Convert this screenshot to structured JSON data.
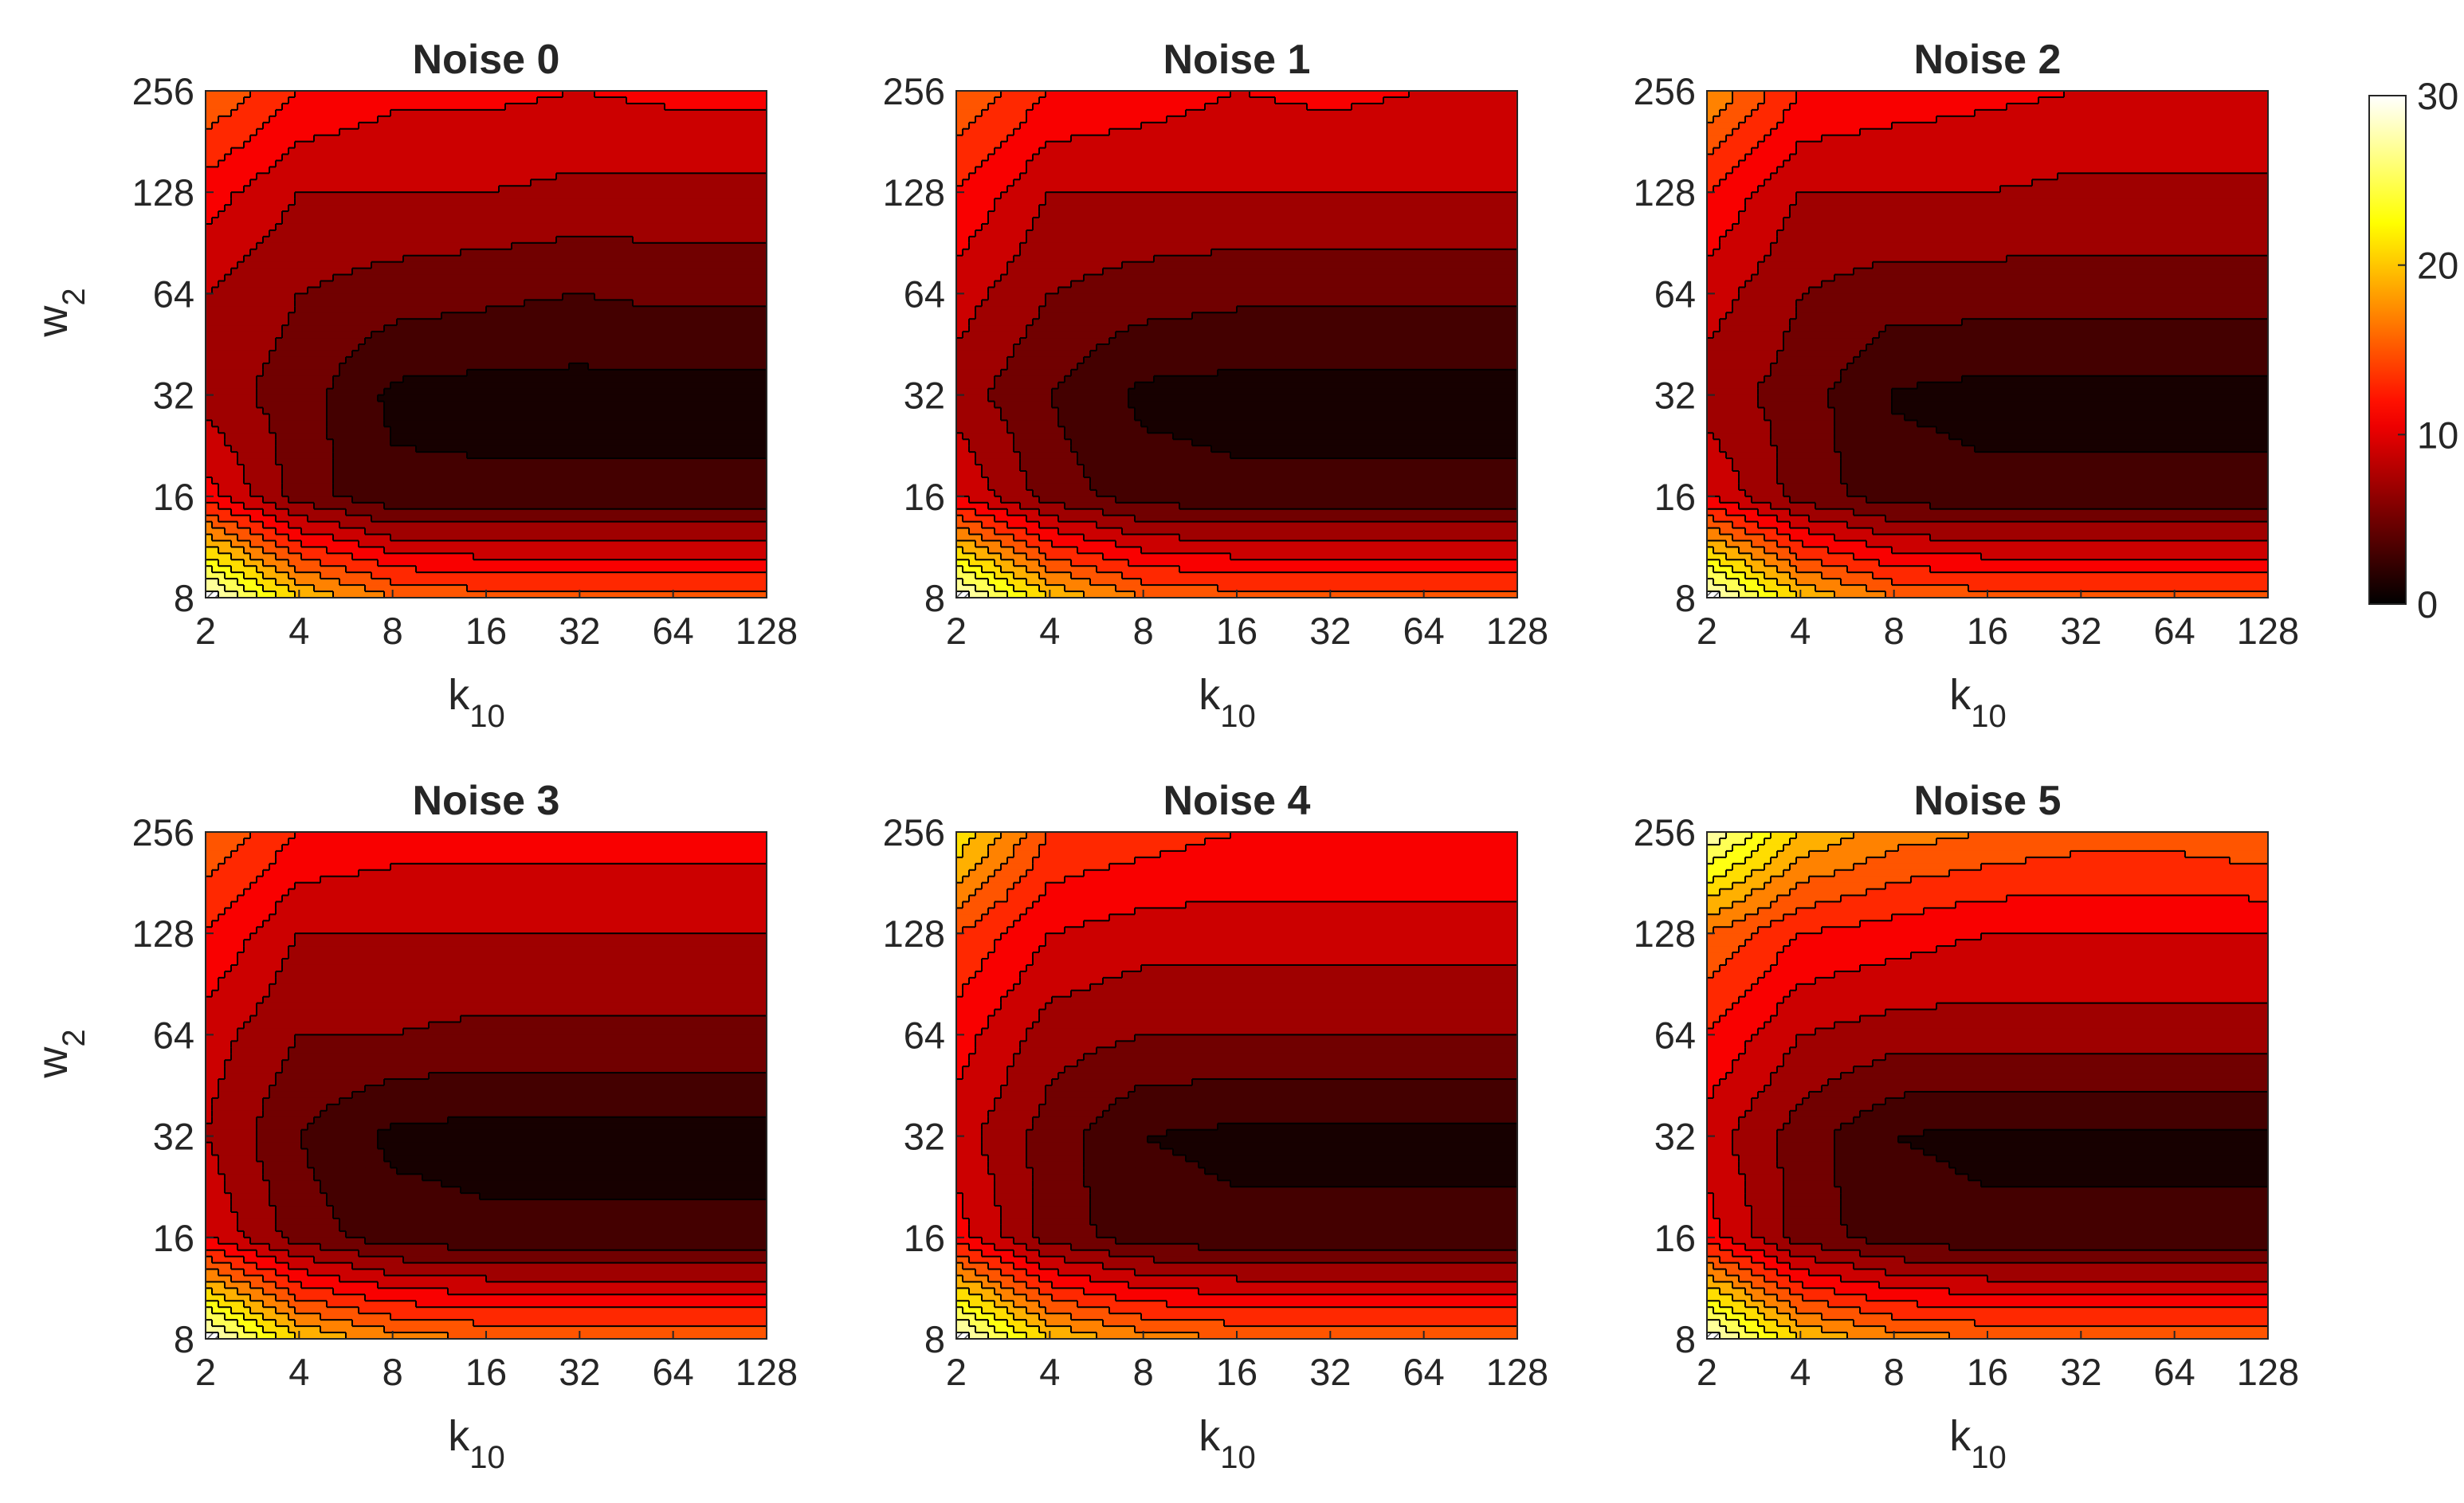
{
  "chart_data": {
    "type": "heatmap",
    "subtype": "filled-contour",
    "colormap": "hot",
    "xscale": "log2",
    "yscale": "log2",
    "x_ticks": [
      "2",
      "4",
      "8",
      "16",
      "32",
      "64",
      "128"
    ],
    "y_ticks": [
      "8",
      "16",
      "32",
      "64",
      "128",
      "256"
    ],
    "x": [
      2,
      4,
      8,
      16,
      32,
      64,
      128
    ],
    "y": [
      8,
      16,
      32,
      64,
      128,
      256
    ],
    "xlabel": {
      "main": "k",
      "sub": "10"
    },
    "ylabel": {
      "main": "w",
      "sub": "2"
    },
    "colorbar": {
      "min": 0,
      "max": 30,
      "ticks": [
        "0",
        "10",
        "20",
        "30"
      ]
    },
    "contour_levels": [
      0,
      2,
      4,
      6,
      8,
      10,
      12,
      14,
      16,
      18,
      20,
      22,
      24,
      26,
      28,
      30
    ],
    "panels": [
      {
        "title": "Noise 0",
        "z": [
          [
            30,
            20,
            16,
            15,
            15,
            15,
            15
          ],
          [
            11,
            5,
            2.5,
            2.5,
            2.5,
            2.5,
            2.5
          ],
          [
            7,
            5,
            1.5,
            1.2,
            1.2,
            1.2,
            1.2
          ],
          [
            8,
            6,
            5,
            4.5,
            4,
            4.5,
            4.5
          ],
          [
            11,
            8,
            8,
            8,
            7.5,
            7.5,
            7.5
          ],
          [
            16,
            12,
            10.5,
            10.5,
            10,
            10.5,
            10.5
          ]
        ]
      },
      {
        "title": "Noise 1",
        "z": [
          [
            30,
            20,
            16,
            15,
            15,
            15,
            15
          ],
          [
            10,
            5,
            3,
            2.5,
            2.5,
            2.5,
            2.5
          ],
          [
            7,
            4,
            1.5,
            1.2,
            1.2,
            1.2,
            1.2
          ],
          [
            9,
            6,
            5,
            4.5,
            4.5,
            4.5,
            4.5
          ],
          [
            12,
            8,
            8,
            8,
            8,
            8,
            8
          ],
          [
            16,
            12,
            11,
            10,
            10.5,
            10,
            10
          ]
        ]
      },
      {
        "title": "Noise 2",
        "z": [
          [
            30,
            20,
            16,
            15,
            15,
            15,
            15
          ],
          [
            10,
            5,
            3,
            2.5,
            2.5,
            2.5,
            2.5
          ],
          [
            7,
            5,
            1.8,
            1.3,
            1.3,
            1.3,
            1.3
          ],
          [
            9,
            6,
            5,
            5,
            5,
            5,
            5
          ],
          [
            12,
            8,
            8,
            8,
            7.5,
            7.5,
            7.5
          ],
          [
            18,
            12,
            11,
            10.5,
            10,
            10,
            10
          ]
        ]
      },
      {
        "title": "Noise 3",
        "z": [
          [
            30,
            20,
            17,
            16,
            16,
            16,
            16
          ],
          [
            10,
            5,
            3,
            2.5,
            2.5,
            2.5,
            2.5
          ],
          [
            8,
            4,
            1.5,
            1.2,
            1.2,
            1.2,
            1.2
          ],
          [
            9,
            6,
            6,
            5.5,
            5.5,
            5.5,
            5.5
          ],
          [
            12,
            8,
            8,
            8,
            8,
            8,
            8
          ],
          [
            16,
            12,
            11,
            11,
            11,
            11,
            11
          ]
        ]
      },
      {
        "title": "Noise 4",
        "z": [
          [
            30,
            20,
            17,
            16,
            16,
            16,
            16
          ],
          [
            11,
            5,
            3,
            2.5,
            2.5,
            2.5,
            2.5
          ],
          [
            9,
            5,
            2,
            1.5,
            1.5,
            1.5,
            1.5
          ],
          [
            11,
            7,
            6,
            6,
            6,
            6,
            6
          ],
          [
            14,
            10,
            9,
            9,
            9,
            9,
            9
          ],
          [
            22,
            14,
            13,
            12,
            12,
            12,
            12
          ]
        ]
      },
      {
        "title": "Noise 5",
        "z": [
          [
            30,
            20,
            17,
            16,
            16,
            16,
            16
          ],
          [
            11,
            5,
            3,
            2.5,
            2.5,
            2.5,
            2.5
          ],
          [
            9,
            5,
            2,
            1.5,
            1.5,
            1.5,
            1.5
          ],
          [
            12,
            8,
            7,
            7,
            7,
            7,
            7
          ],
          [
            16,
            12,
            11,
            10,
            10,
            10,
            10
          ],
          [
            28,
            20,
            17,
            16,
            15,
            15,
            16
          ]
        ]
      }
    ]
  }
}
